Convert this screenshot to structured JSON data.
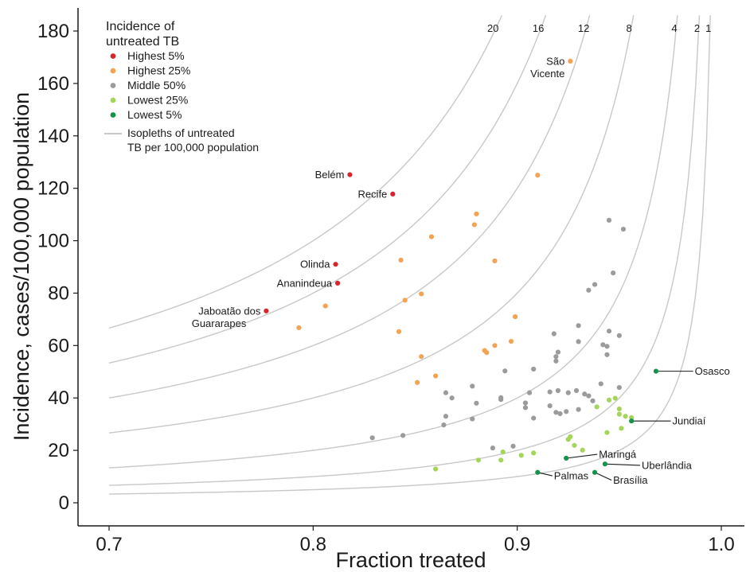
{
  "chart_data": {
    "type": "scatter",
    "xlabel": "Fraction treated",
    "ylabel": "Incidence, cases/100,000 population",
    "xlim": [
      0.685,
      1.01
    ],
    "ylim": [
      -9,
      189
    ],
    "x_ticks": [
      "0.7",
      "0.8",
      "0.9",
      "1.0"
    ],
    "x_tick_values": [
      0.7,
      0.8,
      0.9,
      1.0
    ],
    "y_ticks": [
      "0",
      "20",
      "40",
      "60",
      "80",
      "100",
      "120",
      "140",
      "160",
      "180"
    ],
    "y_tick_values": [
      0,
      20,
      40,
      60,
      80,
      100,
      120,
      140,
      160,
      180
    ],
    "grid": false,
    "legend": {
      "position": "top-left",
      "title_line1": "Incidence of",
      "title_line2": "untreated TB",
      "items": [
        {
          "key": "highest5",
          "label": "Highest 5%",
          "color": "#d7262b"
        },
        {
          "key": "highest25",
          "label": "Highest 25%",
          "color": "#f4a353"
        },
        {
          "key": "middle50",
          "label": "Middle 50%",
          "color": "#9b9b9b"
        },
        {
          "key": "lowest25",
          "label": "Lowest 25%",
          "color": "#a4d55a"
        },
        {
          "key": "lowest5",
          "label": "Lowest 5%",
          "color": "#15924a"
        }
      ],
      "isopleth_label_line1": "Isopleths of untreated",
      "isopleth_label_line2": "TB per 100,000 population",
      "isopleth_color": "#c8c8c8"
    },
    "isopleths": [
      {
        "value": 20,
        "label": "20"
      },
      {
        "value": 16,
        "label": "16"
      },
      {
        "value": 12,
        "label": "12"
      },
      {
        "value": 8,
        "label": "8"
      },
      {
        "value": 4,
        "label": "4"
      },
      {
        "value": 2,
        "label": "2"
      },
      {
        "value": 1,
        "label": "1"
      }
    ],
    "labeled_points": [
      {
        "name_lines": [
          "São",
          "Vicente"
        ],
        "x": 0.926,
        "y": 168.5,
        "group": "highest25",
        "label_side": "left"
      },
      {
        "name_lines": [
          "Belém"
        ],
        "x": 0.818,
        "y": 125.2,
        "group": "highest5",
        "label_side": "left"
      },
      {
        "name_lines": [
          "Recife"
        ],
        "x": 0.839,
        "y": 117.8,
        "group": "highest5",
        "label_side": "left"
      },
      {
        "name_lines": [
          "Olinda"
        ],
        "x": 0.811,
        "y": 91.0,
        "group": "highest5",
        "label_side": "left"
      },
      {
        "name_lines": [
          "Ananindeua"
        ],
        "x": 0.812,
        "y": 83.8,
        "group": "highest5",
        "label_side": "left"
      },
      {
        "name_lines": [
          "Jaboatão dos",
          "Guararapes"
        ],
        "x": 0.777,
        "y": 73.2,
        "group": "highest5",
        "label_side": "left"
      },
      {
        "name_lines": [
          "Osasco"
        ],
        "x": 0.968,
        "y": 50.2,
        "group": "lowest5",
        "label_side": "leader",
        "label_x": 0.987,
        "label_y": 50.2
      },
      {
        "name_lines": [
          "Jundiaí"
        ],
        "x": 0.956,
        "y": 31.2,
        "group": "lowest5",
        "label_side": "leader",
        "label_x": 0.976,
        "label_y": 31.2
      },
      {
        "name_lines": [
          "Maringá"
        ],
        "x": 0.924,
        "y": 17.0,
        "group": "lowest5",
        "label_side": "leader",
        "label_x": 0.94,
        "label_y": 18.5
      },
      {
        "name_lines": [
          "Uberlândia"
        ],
        "x": 0.943,
        "y": 14.8,
        "group": "lowest5",
        "label_side": "leader",
        "label_x": 0.961,
        "label_y": 14.3
      },
      {
        "name_lines": [
          "Brasília"
        ],
        "x": 0.938,
        "y": 11.6,
        "group": "lowest5",
        "label_side": "leader",
        "label_x": 0.947,
        "label_y": 8.6
      },
      {
        "name_lines": [
          "Palmas"
        ],
        "x": 0.91,
        "y": 11.6,
        "group": "lowest5",
        "label_side": "leader",
        "label_x": 0.918,
        "label_y": 10.3
      }
    ],
    "points": [
      {
        "group": "highest25",
        "x": 0.91,
        "y": 125.0
      },
      {
        "group": "highest25",
        "x": 0.88,
        "y": 110.2
      },
      {
        "group": "highest25",
        "x": 0.879,
        "y": 106.1
      },
      {
        "group": "highest25",
        "x": 0.858,
        "y": 101.5
      },
      {
        "group": "highest25",
        "x": 0.843,
        "y": 92.6
      },
      {
        "group": "highest25",
        "x": 0.889,
        "y": 92.3
      },
      {
        "group": "highest25",
        "x": 0.853,
        "y": 79.7
      },
      {
        "group": "highest25",
        "x": 0.845,
        "y": 77.3
      },
      {
        "group": "highest25",
        "x": 0.806,
        "y": 75.1
      },
      {
        "group": "highest25",
        "x": 0.899,
        "y": 71.0
      },
      {
        "group": "highest25",
        "x": 0.793,
        "y": 66.8
      },
      {
        "group": "highest25",
        "x": 0.842,
        "y": 65.3
      },
      {
        "group": "highest25",
        "x": 0.897,
        "y": 61.6
      },
      {
        "group": "highest25",
        "x": 0.889,
        "y": 60.0
      },
      {
        "group": "highest25",
        "x": 0.884,
        "y": 58.1
      },
      {
        "group": "highest25",
        "x": 0.885,
        "y": 57.3
      },
      {
        "group": "highest25",
        "x": 0.853,
        "y": 55.8
      },
      {
        "group": "highest25",
        "x": 0.86,
        "y": 48.4
      },
      {
        "group": "highest25",
        "x": 0.851,
        "y": 45.9
      },
      {
        "group": "middle50",
        "x": 0.945,
        "y": 107.8
      },
      {
        "group": "middle50",
        "x": 0.952,
        "y": 104.4
      },
      {
        "group": "middle50",
        "x": 0.947,
        "y": 87.7
      },
      {
        "group": "middle50",
        "x": 0.938,
        "y": 83.3
      },
      {
        "group": "middle50",
        "x": 0.935,
        "y": 81.1
      },
      {
        "group": "middle50",
        "x": 0.93,
        "y": 67.6
      },
      {
        "group": "middle50",
        "x": 0.945,
        "y": 65.5
      },
      {
        "group": "middle50",
        "x": 0.918,
        "y": 64.5
      },
      {
        "group": "middle50",
        "x": 0.95,
        "y": 63.8
      },
      {
        "group": "middle50",
        "x": 0.93,
        "y": 61.5
      },
      {
        "group": "middle50",
        "x": 0.942,
        "y": 60.3
      },
      {
        "group": "middle50",
        "x": 0.944,
        "y": 59.7
      },
      {
        "group": "middle50",
        "x": 0.92,
        "y": 57.5
      },
      {
        "group": "middle50",
        "x": 0.944,
        "y": 56.5
      },
      {
        "group": "middle50",
        "x": 0.919,
        "y": 55.8
      },
      {
        "group": "middle50",
        "x": 0.919,
        "y": 54.1
      },
      {
        "group": "middle50",
        "x": 0.908,
        "y": 51.0
      },
      {
        "group": "middle50",
        "x": 0.894,
        "y": 50.3
      },
      {
        "group": "middle50",
        "x": 0.941,
        "y": 45.4
      },
      {
        "group": "middle50",
        "x": 0.878,
        "y": 44.5
      },
      {
        "group": "middle50",
        "x": 0.95,
        "y": 44.0
      },
      {
        "group": "middle50",
        "x": 0.929,
        "y": 42.8
      },
      {
        "group": "middle50",
        "x": 0.92,
        "y": 42.8
      },
      {
        "group": "middle50",
        "x": 0.916,
        "y": 42.3
      },
      {
        "group": "middle50",
        "x": 0.925,
        "y": 42.0
      },
      {
        "group": "middle50",
        "x": 0.865,
        "y": 42.0
      },
      {
        "group": "middle50",
        "x": 0.906,
        "y": 42.0
      },
      {
        "group": "middle50",
        "x": 0.933,
        "y": 41.5
      },
      {
        "group": "middle50",
        "x": 0.935,
        "y": 40.8
      },
      {
        "group": "middle50",
        "x": 0.868,
        "y": 40.0
      },
      {
        "group": "middle50",
        "x": 0.892,
        "y": 40.1
      },
      {
        "group": "middle50",
        "x": 0.892,
        "y": 39.4
      },
      {
        "group": "middle50",
        "x": 0.937,
        "y": 38.9
      },
      {
        "group": "middle50",
        "x": 0.88,
        "y": 38.0
      },
      {
        "group": "middle50",
        "x": 0.904,
        "y": 38.1
      },
      {
        "group": "middle50",
        "x": 0.916,
        "y": 37.0
      },
      {
        "group": "middle50",
        "x": 0.904,
        "y": 36.3
      },
      {
        "group": "middle50",
        "x": 0.93,
        "y": 35.6
      },
      {
        "group": "middle50",
        "x": 0.924,
        "y": 34.8
      },
      {
        "group": "middle50",
        "x": 0.919,
        "y": 34.5
      },
      {
        "group": "middle50",
        "x": 0.921,
        "y": 34.0
      },
      {
        "group": "middle50",
        "x": 0.865,
        "y": 33.0
      },
      {
        "group": "middle50",
        "x": 0.908,
        "y": 32.3
      },
      {
        "group": "middle50",
        "x": 0.878,
        "y": 32.0
      },
      {
        "group": "middle50",
        "x": 0.864,
        "y": 29.7
      },
      {
        "group": "middle50",
        "x": 0.844,
        "y": 25.7
      },
      {
        "group": "middle50",
        "x": 0.829,
        "y": 24.8
      },
      {
        "group": "middle50",
        "x": 0.898,
        "y": 21.6
      },
      {
        "group": "middle50",
        "x": 0.888,
        "y": 20.9
      },
      {
        "group": "lowest25",
        "x": 0.948,
        "y": 39.9
      },
      {
        "group": "lowest25",
        "x": 0.945,
        "y": 39.2
      },
      {
        "group": "lowest25",
        "x": 0.939,
        "y": 36.6
      },
      {
        "group": "lowest25",
        "x": 0.95,
        "y": 35.8
      },
      {
        "group": "lowest25",
        "x": 0.95,
        "y": 33.8
      },
      {
        "group": "lowest25",
        "x": 0.953,
        "y": 33.0
      },
      {
        "group": "lowest25",
        "x": 0.956,
        "y": 32.5
      },
      {
        "group": "lowest25",
        "x": 0.951,
        "y": 28.4
      },
      {
        "group": "lowest25",
        "x": 0.944,
        "y": 26.8
      },
      {
        "group": "lowest25",
        "x": 0.926,
        "y": 25.2
      },
      {
        "group": "lowest25",
        "x": 0.925,
        "y": 24.2
      },
      {
        "group": "lowest25",
        "x": 0.928,
        "y": 21.9
      },
      {
        "group": "lowest25",
        "x": 0.932,
        "y": 20.1
      },
      {
        "group": "lowest25",
        "x": 0.893,
        "y": 19.4
      },
      {
        "group": "lowest25",
        "x": 0.908,
        "y": 19.0
      },
      {
        "group": "lowest25",
        "x": 0.902,
        "y": 18.1
      },
      {
        "group": "lowest25",
        "x": 0.881,
        "y": 16.3
      },
      {
        "group": "lowest25",
        "x": 0.892,
        "y": 16.3
      },
      {
        "group": "lowest25",
        "x": 0.86,
        "y": 12.9
      }
    ]
  }
}
